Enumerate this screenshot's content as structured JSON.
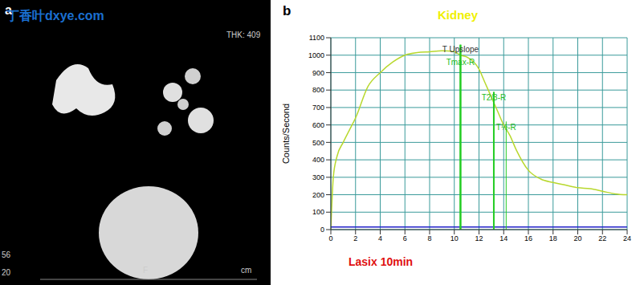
{
  "left_panel": {
    "panel_label": "a",
    "watermark": "丁香叶dxye.com",
    "header_text": "THK: 409",
    "corner_numbers": [
      "56",
      "20"
    ],
    "bottom_labels": [
      "F",
      "cm"
    ]
  },
  "chart_data": {
    "type": "line",
    "panel_label": "b",
    "title": "Kidney",
    "y_label": "Counts/Second",
    "annotation": "Lasix 10min",
    "x": [
      0,
      0.2,
      0.5,
      1,
      1.5,
      2,
      3,
      4,
      5,
      6,
      7,
      8,
      9,
      10,
      10.5,
      11,
      12,
      12.5,
      13,
      13.5,
      14,
      14.5,
      15,
      16,
      17,
      18,
      19,
      20,
      21,
      22,
      23,
      24
    ],
    "series": [
      {
        "color": "#b8d82e",
        "values": [
          0,
          300,
          420,
          500,
          570,
          640,
          820,
          900,
          960,
          1000,
          1015,
          1020,
          1025,
          1020,
          1000,
          990,
          920,
          840,
          760,
          680,
          600,
          540,
          460,
          340,
          290,
          270,
          255,
          240,
          235,
          220,
          205,
          200
        ]
      },
      {
        "color": "#2020c8",
        "values": [
          15,
          15,
          15,
          15,
          15,
          15,
          15,
          15,
          15,
          15,
          15,
          15,
          15,
          15,
          15,
          15,
          15,
          15,
          15,
          15,
          15,
          15,
          15,
          15,
          15,
          15,
          15,
          15,
          15,
          15,
          15,
          15
        ]
      }
    ],
    "reference_lines": [
      {
        "x": 10.5,
        "y": 1060,
        "label": "Tmax-R",
        "top_label": "T Upslope"
      },
      {
        "x": 13.2,
        "y": 790,
        "label": "T2/3-R"
      },
      {
        "x": 14.2,
        "y": 620,
        "label": "T½-R"
      }
    ],
    "xlim": [
      0,
      24
    ],
    "xticks": [
      0,
      2,
      4,
      6,
      8,
      10,
      12,
      14,
      16,
      18,
      20,
      22,
      24
    ],
    "ylim": [
      0,
      1100
    ],
    "yticks": [
      0,
      100,
      200,
      300,
      400,
      500,
      600,
      700,
      800,
      900,
      1000,
      1100
    ],
    "grid": true
  }
}
